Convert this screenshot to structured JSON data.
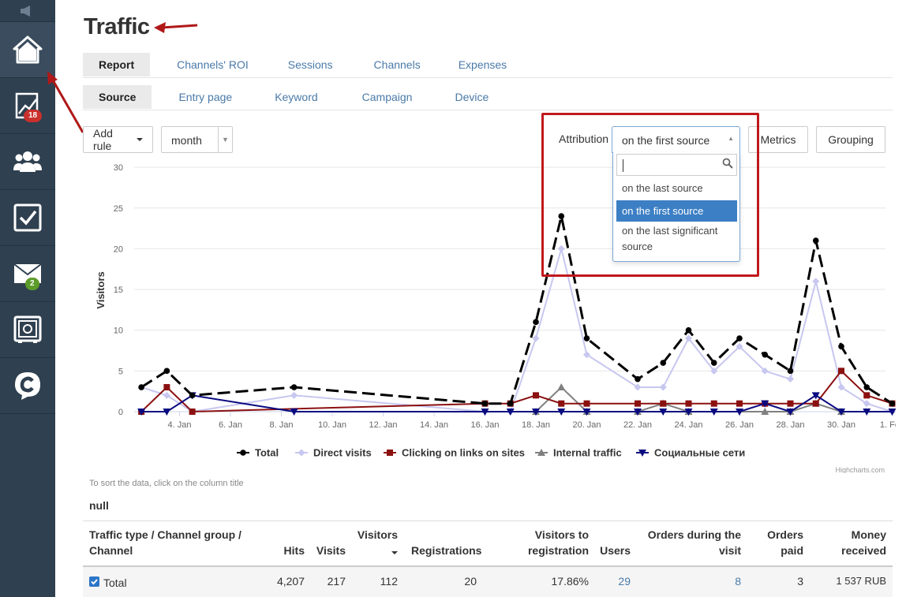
{
  "sidebar": {
    "badges": {
      "analytics": "18",
      "mail": "2"
    }
  },
  "page": {
    "title": "Traffic"
  },
  "tabs_primary": [
    "Report",
    "Channels' ROI",
    "Sessions",
    "Channels",
    "Expenses"
  ],
  "tabs_secondary": [
    "Source",
    "Entry page",
    "Keyword",
    "Campaign",
    "Device"
  ],
  "controls": {
    "add_rule": "Add rule",
    "period": "month",
    "attribution_label": "Attribution",
    "attribution_value": "on the first source",
    "metrics": "Metrics",
    "grouping": "Grouping"
  },
  "attribution_options": [
    {
      "label": "on the last source",
      "selected": false
    },
    {
      "label": "on the first source",
      "selected": true
    },
    {
      "label": "on the last significant source",
      "selected": false
    }
  ],
  "chart_data": {
    "type": "line",
    "ylabel": "Visitors",
    "ylim": [
      0,
      30
    ],
    "yticks": [
      0,
      5,
      10,
      15,
      20,
      25,
      30
    ],
    "xticks": [
      "4. Jan",
      "6. Jan",
      "8. Jan",
      "10. Jan",
      "12. Jan",
      "14. Jan",
      "16. Jan",
      "18. Jan",
      "20. Jan",
      "22. Jan",
      "24. Jan",
      "26. Jan",
      "28. Jan",
      "30. Jan",
      "1. Feb"
    ],
    "credit": "Highcharts.com",
    "series": [
      {
        "name": "Total",
        "color": "#000000",
        "dash": true,
        "marker": "circle",
        "points": [
          [
            3,
            3
          ],
          [
            4,
            5
          ],
          [
            5,
            2
          ],
          [
            9,
            3
          ],
          [
            16.5,
            1
          ],
          [
            17.5,
            1
          ],
          [
            18.5,
            11
          ],
          [
            19.5,
            24
          ],
          [
            20.5,
            9
          ],
          [
            22.5,
            4
          ],
          [
            23.5,
            6
          ],
          [
            24.5,
            10
          ],
          [
            25.5,
            6
          ],
          [
            26.5,
            9
          ],
          [
            27.5,
            7
          ],
          [
            28.5,
            5
          ],
          [
            29.5,
            21
          ],
          [
            30.5,
            8
          ],
          [
            31.5,
            3
          ],
          [
            32.5,
            1
          ]
        ]
      },
      {
        "name": "Direct visits",
        "color": "#c7c7f0",
        "marker": "diamond",
        "points": [
          [
            3,
            3
          ],
          [
            4,
            2
          ],
          [
            5,
            0
          ],
          [
            9,
            2
          ],
          [
            16.5,
            0
          ],
          [
            17.5,
            0
          ],
          [
            18.5,
            9
          ],
          [
            19.5,
            20
          ],
          [
            20.5,
            7
          ],
          [
            22.5,
            3
          ],
          [
            23.5,
            3
          ],
          [
            24.5,
            9
          ],
          [
            25.5,
            5
          ],
          [
            26.5,
            8
          ],
          [
            27.5,
            5
          ],
          [
            28.5,
            4
          ],
          [
            29.5,
            16
          ],
          [
            30.5,
            3
          ],
          [
            31.5,
            1
          ],
          [
            32.5,
            0
          ]
        ]
      },
      {
        "name": "Clicking on links on sites",
        "color": "#8b1010",
        "marker": "square",
        "points": [
          [
            3,
            0
          ],
          [
            4,
            3
          ],
          [
            5,
            0
          ],
          [
            16.5,
            1
          ],
          [
            17.5,
            1
          ],
          [
            18.5,
            2
          ],
          [
            19.5,
            1
          ],
          [
            20.5,
            1
          ],
          [
            22.5,
            1
          ],
          [
            23.5,
            1
          ],
          [
            24.5,
            1
          ],
          [
            25.5,
            1
          ],
          [
            26.5,
            1
          ],
          [
            27.5,
            1
          ],
          [
            28.5,
            1
          ],
          [
            29.5,
            1
          ],
          [
            30.5,
            5
          ],
          [
            31.5,
            2
          ],
          [
            32.5,
            1
          ]
        ]
      },
      {
        "name": "Internal traffic",
        "color": "#808080",
        "marker": "triangle",
        "points": [
          [
            18.5,
            0
          ],
          [
            19.5,
            3
          ],
          [
            20.5,
            0
          ],
          [
            22.5,
            0
          ],
          [
            23.5,
            1
          ],
          [
            24.5,
            0
          ],
          [
            27.5,
            0
          ],
          [
            28.5,
            0
          ],
          [
            29.5,
            1
          ],
          [
            30.5,
            0
          ]
        ]
      },
      {
        "name": "Социальные сети",
        "color": "#0a0a80",
        "marker": "triangle-down",
        "points": [
          [
            3,
            0
          ],
          [
            4,
            0
          ],
          [
            5,
            2
          ],
          [
            9,
            0
          ],
          [
            16.5,
            0
          ],
          [
            17.5,
            0
          ],
          [
            18.5,
            0
          ],
          [
            19.5,
            0
          ],
          [
            20.5,
            0
          ],
          [
            22.5,
            0
          ],
          [
            23.5,
            0
          ],
          [
            24.5,
            0
          ],
          [
            25.5,
            0
          ],
          [
            26.5,
            0
          ],
          [
            27.5,
            1
          ],
          [
            28.5,
            0
          ],
          [
            29.5,
            2
          ],
          [
            30.5,
            0
          ],
          [
            31.5,
            0
          ],
          [
            32.5,
            0
          ]
        ]
      }
    ]
  },
  "table": {
    "hint": "To sort the data, click on the column title",
    "group_label": "null",
    "headers": {
      "traffic_type": "Traffic type / Channel group / Channel",
      "hits": "Hits",
      "visits": "Visits",
      "visitors": "Visitors",
      "registrations": "Registrations",
      "visitors_to_registration": "Visitors to registration",
      "users": "Users",
      "orders_during_visit": "Orders during the visit",
      "orders_paid": "Orders paid",
      "money_received": "Money received"
    },
    "rows": [
      {
        "label": "Total",
        "hits": "4,207",
        "visits": "217",
        "visitors": "112",
        "registrations": "20",
        "visitors_to_registration": "17.86%",
        "users": "29",
        "orders_during_visit": "8",
        "orders_paid": "3",
        "money_received": "1 537 RUB"
      }
    ]
  }
}
